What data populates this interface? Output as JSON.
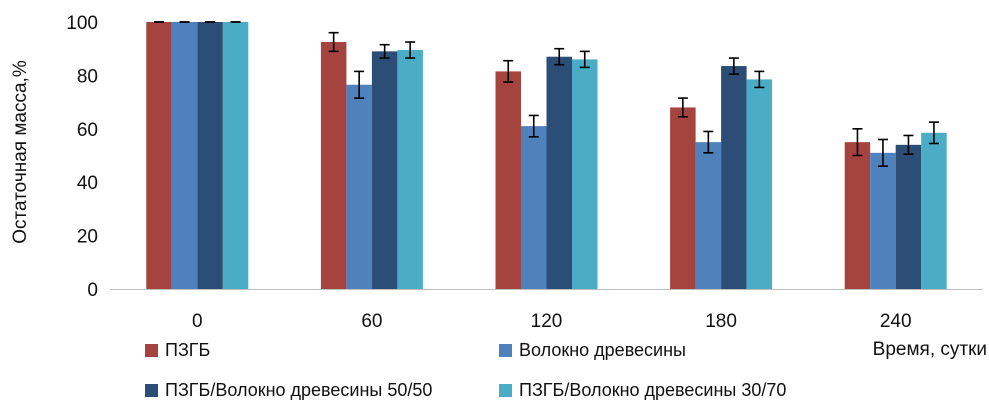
{
  "chart_data": {
    "type": "bar",
    "title": "",
    "xlabel": "Время, сутки",
    "ylabel": "Остаточная масса,%",
    "ylim": [
      0,
      100
    ],
    "yticks": [
      0,
      20,
      40,
      60,
      80,
      100
    ],
    "grid": false,
    "legend_position": "bottom",
    "categories": [
      "0",
      "60",
      "120",
      "180",
      "240"
    ],
    "series": [
      {
        "name": "ПЗГБ",
        "color": "#A5433F",
        "values": [
          100,
          92.5,
          81.5,
          68,
          55
        ],
        "errors": [
          0,
          3.5,
          4,
          3.5,
          5
        ]
      },
      {
        "name": "Волокно древесины",
        "color": "#4F81BD",
        "values": [
          100,
          76.5,
          61,
          55,
          51
        ],
        "errors": [
          0,
          5,
          4,
          4,
          5
        ]
      },
      {
        "name": "ПЗГБ/Волокно древесины 50/50",
        "color": "#2C4D75",
        "values": [
          100,
          89,
          87,
          83.5,
          54
        ],
        "errors": [
          0,
          2.5,
          3,
          3,
          3.5
        ]
      },
      {
        "name": "ПЗГБ/Волокно древесины 30/70",
        "color": "#4BACC6",
        "values": [
          100,
          89.5,
          86,
          78.5,
          58.5
        ],
        "errors": [
          0,
          3,
          3,
          3,
          4
        ]
      }
    ]
  }
}
